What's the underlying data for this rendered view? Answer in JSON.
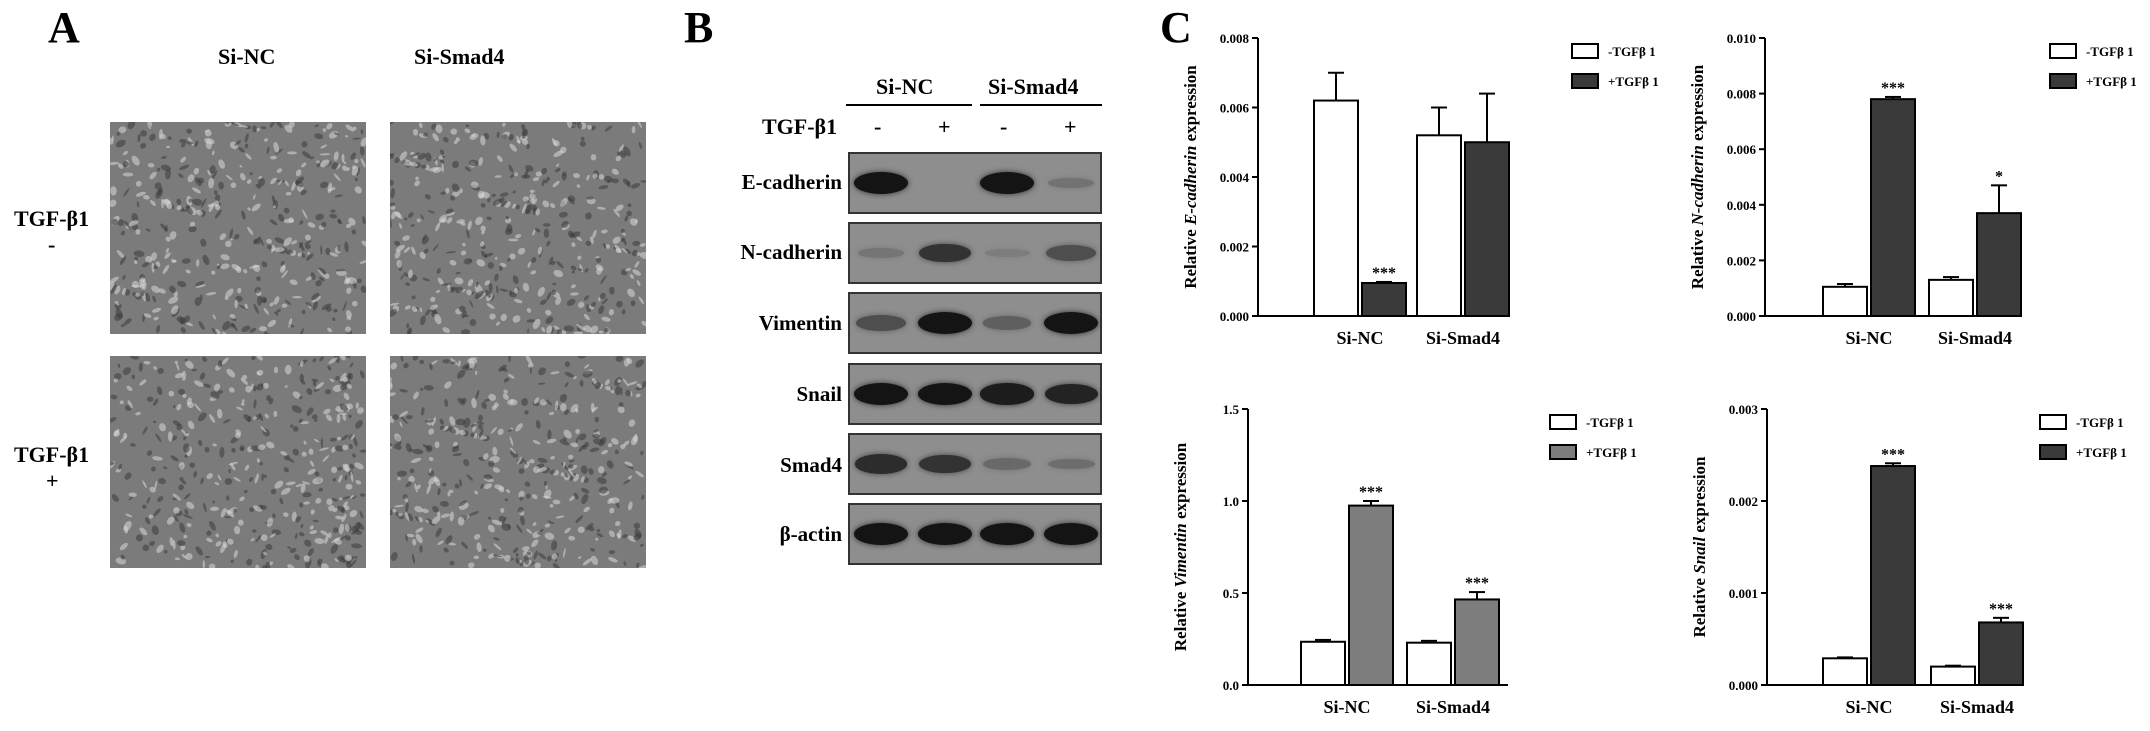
{
  "panels": {
    "a": "A",
    "b": "B",
    "c": "C"
  },
  "panelA": {
    "columns": [
      "Si-NC",
      "Si-Smad4"
    ],
    "rows": [
      {
        "label": "TGF-β1",
        "sign": "-"
      },
      {
        "label": "TGF-β1",
        "sign": "+"
      }
    ]
  },
  "panelB": {
    "groups": [
      "Si-NC",
      "Si-Smad4"
    ],
    "treatment_label": "TGF-β1",
    "signs": [
      "-",
      "+",
      "-",
      "+"
    ],
    "proteins": [
      "E-cadherin",
      "N-cadherin",
      "Vimentin",
      "Snail",
      "Smad4",
      "β-actin"
    ],
    "band_intensity": [
      [
        1.0,
        0.0,
        1.0,
        0.25
      ],
      [
        0.2,
        0.8,
        0.1,
        0.6
      ],
      [
        0.6,
        1.0,
        0.45,
        1.0
      ],
      [
        1.0,
        1.0,
        0.95,
        0.9
      ],
      [
        0.85,
        0.8,
        0.35,
        0.3
      ],
      [
        1.0,
        1.0,
        1.0,
        1.0
      ]
    ]
  },
  "chart_data": [
    {
      "type": "bar",
      "categories": [
        "Si-NC",
        "Si-Smad4"
      ],
      "series": [
        {
          "name": "-TGFβ 1",
          "values": [
            0.0062,
            0.0052
          ],
          "errors": [
            0.0008,
            0.0008
          ]
        },
        {
          "name": "+TGFβ 1",
          "values": [
            0.00095,
            0.005
          ],
          "errors": [
            3e-05,
            0.0014
          ]
        }
      ],
      "significance": [
        [
          "",
          "***"
        ],
        [
          "",
          ""
        ]
      ],
      "ylabel_prefix": "Relative ",
      "ylabel_gene": "E-cadherin",
      "ylabel_suffix": " expression",
      "ylim": [
        0,
        0.008
      ],
      "yticks": [
        "0.000",
        "0.002",
        "0.004",
        "0.006",
        "0.008"
      ],
      "series_colors": [
        "#ffffff",
        "#3a3a3a"
      ],
      "legend": "top-right"
    },
    {
      "type": "bar",
      "categories": [
        "Si-NC",
        "Si-Smad4"
      ],
      "series": [
        {
          "name": "-TGFβ 1",
          "values": [
            0.00105,
            0.0013
          ],
          "errors": [
            0.0001,
            0.0001
          ]
        },
        {
          "name": "+TGFβ 1",
          "values": [
            0.0078,
            0.0037
          ],
          "errors": [
            8e-05,
            0.001
          ]
        }
      ],
      "significance": [
        [
          "",
          "***"
        ],
        [
          "",
          "*"
        ]
      ],
      "ylabel_prefix": "Relative ",
      "ylabel_gene": "N-cadherin",
      "ylabel_suffix": " expression",
      "ylim": [
        0,
        0.01
      ],
      "yticks": [
        "0.000",
        "0.002",
        "0.004",
        "0.006",
        "0.008",
        "0.010"
      ],
      "series_colors": [
        "#ffffff",
        "#3a3a3a"
      ],
      "legend": "top-right"
    },
    {
      "type": "bar",
      "categories": [
        "Si-NC",
        "Si-Smad4"
      ],
      "series": [
        {
          "name": "-TGFβ 1",
          "values": [
            0.235,
            0.23
          ],
          "errors": [
            0.01,
            0.01
          ]
        },
        {
          "name": "+TGFβ 1",
          "values": [
            0.975,
            0.465
          ],
          "errors": [
            0.025,
            0.04
          ]
        }
      ],
      "significance": [
        [
          "",
          "***"
        ],
        [
          "",
          "***"
        ]
      ],
      "ylabel_prefix": "Relative ",
      "ylabel_gene": "Vimentin",
      "ylabel_suffix": " expression",
      "ylim": [
        0,
        1.5
      ],
      "yticks": [
        "0.0",
        "0.5",
        "1.0",
        "1.5"
      ],
      "series_colors": [
        "#ffffff",
        "#7d7d7d"
      ],
      "legend": "top-right"
    },
    {
      "type": "bar",
      "categories": [
        "Si-NC",
        "Si-Smad4"
      ],
      "series": [
        {
          "name": "-TGFβ 1",
          "values": [
            0.00029,
            0.0002
          ],
          "errors": [
            1e-05,
            1e-05
          ]
        },
        {
          "name": "+TGFβ 1",
          "values": [
            0.00238,
            0.00068
          ],
          "errors": [
            3e-05,
            5e-05
          ]
        }
      ],
      "significance": [
        [
          "",
          "***"
        ],
        [
          "",
          "***"
        ]
      ],
      "ylabel_prefix": "Relative ",
      "ylabel_gene": "Snail",
      "ylabel_suffix": " expression",
      "ylim": [
        0,
        0.003
      ],
      "yticks": [
        "0.000",
        "0.001",
        "0.002",
        "0.003"
      ],
      "series_colors": [
        "#ffffff",
        "#3a3a3a"
      ],
      "legend": "top-right"
    }
  ]
}
